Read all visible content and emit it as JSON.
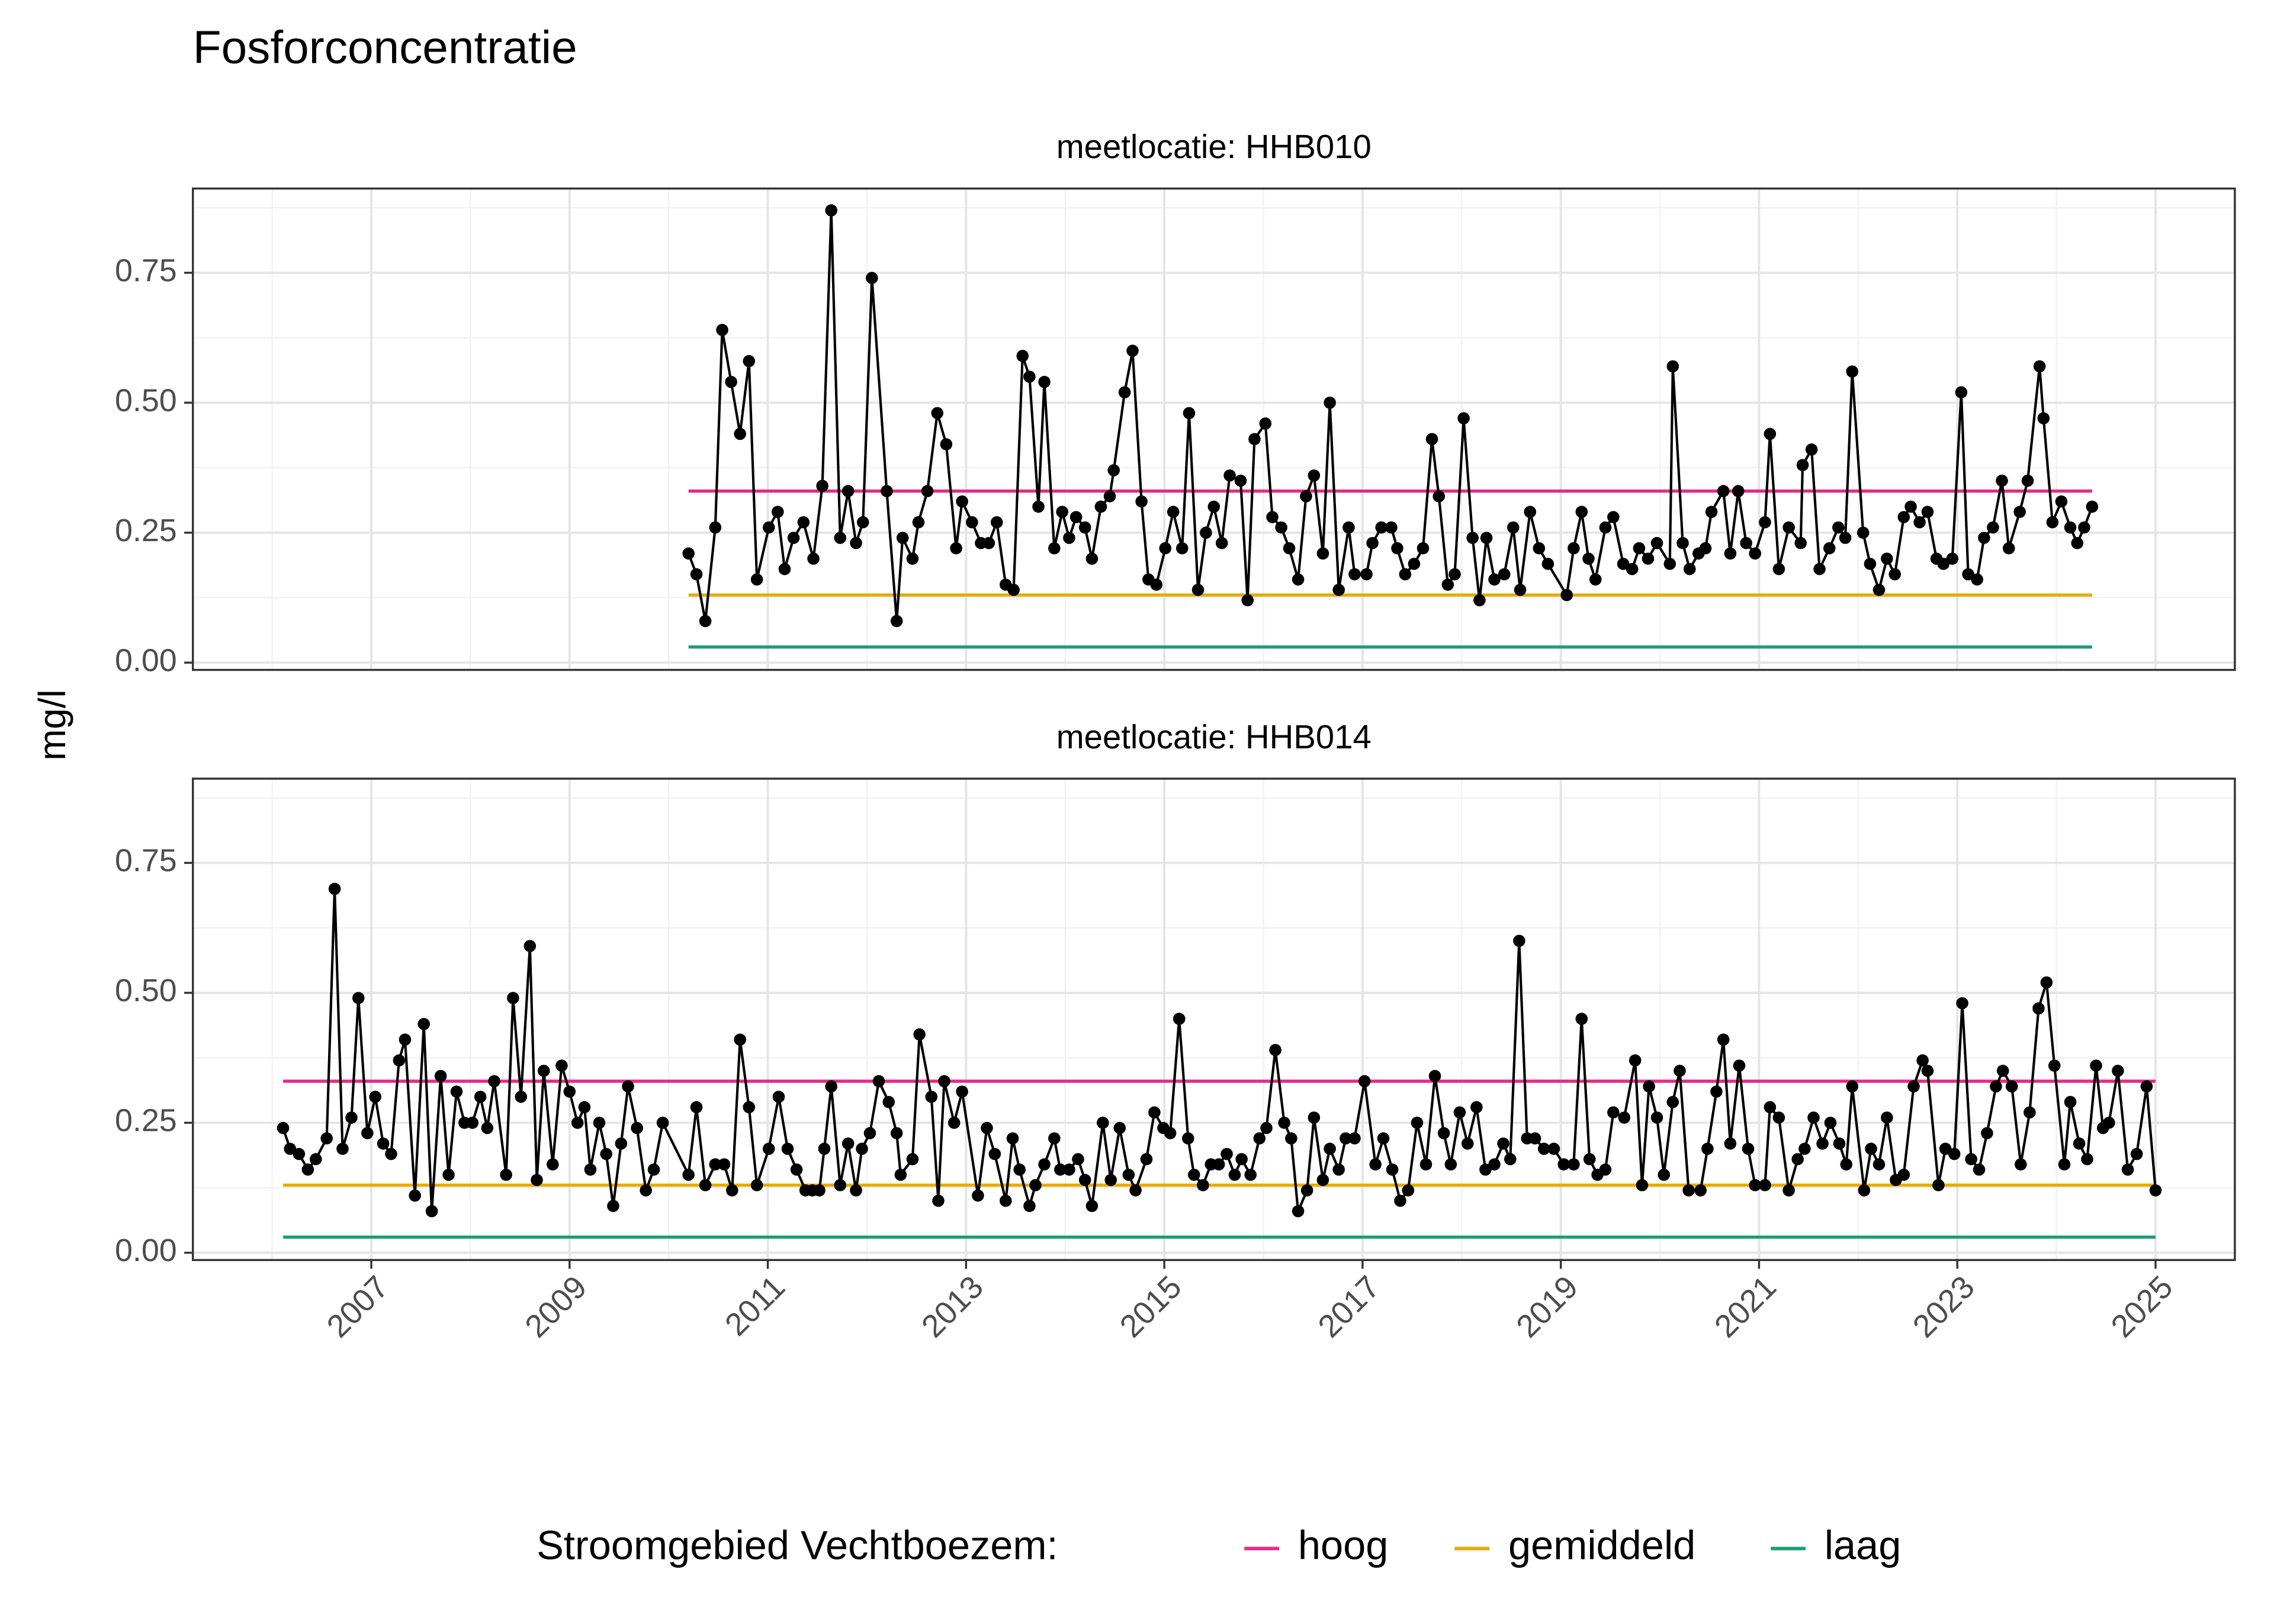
{
  "chart_data": {
    "type": "line",
    "title": "Fosforconcentratie",
    "ylabel": "mg/l",
    "legend_title": "Stroomgebied Vechtboezem:",
    "grid": true,
    "point_color": "#000000",
    "xlim": [
      2005.2,
      2025.8
    ],
    "xticks": [
      2007,
      2009,
      2011,
      2013,
      2015,
      2017,
      2019,
      2021,
      2023,
      2025
    ],
    "ylim": [
      -0.014,
      0.912
    ],
    "yticks": [
      {
        "value": 0,
        "label": "0.00"
      },
      {
        "value": 0.25,
        "label": "0.25"
      },
      {
        "value": 0.5,
        "label": "0.50"
      },
      {
        "value": 0.75,
        "label": "0.75"
      }
    ],
    "series": [
      {
        "name": "hoog",
        "color": "#e7298a"
      },
      {
        "name": "gemiddeld",
        "color": "#e6ab02"
      },
      {
        "name": "laag",
        "color": "#1b9e77"
      }
    ],
    "facets": [
      {
        "title": "meetlocatie: HHB010",
        "x": [
          2010.2,
          2010.28,
          2010.37,
          2010.47,
          2010.54,
          2010.63,
          2010.72,
          2010.81,
          2010.89,
          2011.01,
          2011.1,
          2011.17,
          2011.26,
          2011.36,
          2011.46,
          2011.55,
          2011.64,
          2011.73,
          2011.81,
          2011.89,
          2011.96,
          2012.05,
          2012.2,
          2012.3,
          2012.36,
          2012.46,
          2012.52,
          2012.61,
          2012.71,
          2012.8,
          2012.9,
          2012.96,
          2013.06,
          2013.15,
          2013.23,
          2013.31,
          2013.4,
          2013.48,
          2013.57,
          2013.64,
          2013.73,
          2013.79,
          2013.89,
          2013.97,
          2014.04,
          2014.11,
          2014.2,
          2014.27,
          2014.36,
          2014.45,
          2014.49,
          2014.6,
          2014.68,
          2014.77,
          2014.84,
          2014.92,
          2015.01,
          2015.09,
          2015.18,
          2015.25,
          2015.34,
          2015.42,
          2015.5,
          2015.58,
          2015.66,
          2015.77,
          2015.84,
          2015.91,
          2016.02,
          2016.09,
          2016.18,
          2016.26,
          2016.35,
          2016.43,
          2016.51,
          2016.6,
          2016.67,
          2016.76,
          2016.86,
          2016.92,
          2017.04,
          2017.1,
          2017.19,
          2017.29,
          2017.35,
          2017.43,
          2017.52,
          2017.61,
          2017.7,
          2017.77,
          2017.86,
          2017.93,
          2018.02,
          2018.11,
          2018.18,
          2018.25,
          2018.33,
          2018.43,
          2018.52,
          2018.59,
          2018.69,
          2018.78,
          2018.87,
          2019.06,
          2019.13,
          2019.21,
          2019.28,
          2019.35,
          2019.45,
          2019.53,
          2019.63,
          2019.72,
          2019.79,
          2019.88,
          2019.97,
          2020.1,
          2020.13,
          2020.23,
          2020.3,
          2020.39,
          2020.46,
          2020.52,
          2020.64,
          2020.71,
          2020.79,
          2020.87,
          2020.96,
          2021.06,
          2021.11,
          2021.2,
          2021.3,
          2021.42,
          2021.44,
          2021.53,
          2021.61,
          2021.71,
          2021.8,
          2021.87,
          2021.94,
          2022.05,
          2022.12,
          2022.21,
          2022.29,
          2022.37,
          2022.46,
          2022.53,
          2022.62,
          2022.7,
          2022.79,
          2022.86,
          2022.95,
          2023.04,
          2023.11,
          2023.2,
          2023.27,
          2023.36,
          2023.45,
          2023.52,
          2023.63,
          2023.71,
          2023.83,
          2023.87,
          2023.96,
          2024.05,
          2024.14,
          2024.21,
          2024.28,
          2024.36
        ],
        "values": [
          0.21,
          0.17,
          0.08,
          0.26,
          0.64,
          0.54,
          0.44,
          0.58,
          0.16,
          0.26,
          0.29,
          0.18,
          0.24,
          0.27,
          0.2,
          0.34,
          0.87,
          0.24,
          0.33,
          0.23,
          0.27,
          0.74,
          0.33,
          0.08,
          0.24,
          0.2,
          0.27,
          0.33,
          0.48,
          0.42,
          0.22,
          0.31,
          0.27,
          0.23,
          0.23,
          0.27,
          0.15,
          0.14,
          0.59,
          0.55,
          0.3,
          0.54,
          0.22,
          0.29,
          0.24,
          0.28,
          0.26,
          0.2,
          0.3,
          0.32,
          0.37,
          0.52,
          0.6,
          0.31,
          0.16,
          0.15,
          0.22,
          0.29,
          0.22,
          0.48,
          0.14,
          0.25,
          0.3,
          0.23,
          0.36,
          0.35,
          0.12,
          0.43,
          0.46,
          0.28,
          0.26,
          0.22,
          0.16,
          0.32,
          0.36,
          0.21,
          0.5,
          0.14,
          0.26,
          0.17,
          0.17,
          0.23,
          0.26,
          0.26,
          0.22,
          0.17,
          0.19,
          0.22,
          0.43,
          0.32,
          0.15,
          0.17,
          0.47,
          0.24,
          0.12,
          0.24,
          0.16,
          0.17,
          0.26,
          0.14,
          0.29,
          0.22,
          0.19,
          0.13,
          0.22,
          0.29,
          0.2,
          0.16,
          0.26,
          0.28,
          0.19,
          0.18,
          0.22,
          0.2,
          0.23,
          0.19,
          0.57,
          0.23,
          0.18,
          0.21,
          0.22,
          0.29,
          0.33,
          0.21,
          0.33,
          0.23,
          0.21,
          0.27,
          0.44,
          0.18,
          0.26,
          0.23,
          0.38,
          0.41,
          0.18,
          0.22,
          0.26,
          0.24,
          0.56,
          0.25,
          0.19,
          0.14,
          0.2,
          0.17,
          0.28,
          0.3,
          0.27,
          0.29,
          0.2,
          0.19,
          0.2,
          0.52,
          0.17,
          0.16,
          0.24,
          0.26,
          0.35,
          0.22,
          0.29,
          0.35,
          0.57,
          0.47,
          0.27,
          0.31,
          0.26,
          0.23,
          0.26,
          0.3
        ],
        "lines": [
          {
            "x": [
              2010.2,
              2024.36
            ],
            "values": [
              0.33,
              0.33
            ]
          },
          {
            "x": [
              2010.2,
              2024.36
            ],
            "values": [
              0.13,
              0.13
            ]
          },
          {
            "x": [
              2010.2,
              2024.36
            ],
            "values": [
              0.03,
              0.03
            ]
          }
        ]
      },
      {
        "title": "meetlocatie: HHB014",
        "x": [
          2006.11,
          2006.18,
          2006.27,
          2006.36,
          2006.44,
          2006.55,
          2006.63,
          2006.71,
          2006.8,
          2006.87,
          2006.96,
          2007.04,
          2007.12,
          2007.2,
          2007.28,
          2007.34,
          2007.44,
          2007.53,
          2007.61,
          2007.7,
          2007.78,
          2007.86,
          2007.94,
          2008.02,
          2008.1,
          2008.17,
          2008.24,
          2008.36,
          2008.43,
          2008.51,
          2008.6,
          2008.67,
          2008.74,
          2008.83,
          2008.92,
          2009.0,
          2009.08,
          2009.15,
          2009.21,
          2009.3,
          2009.37,
          2009.44,
          2009.52,
          2009.59,
          2009.68,
          2009.77,
          2009.85,
          2009.94,
          2010.2,
          2010.28,
          2010.37,
          2010.47,
          2010.56,
          2010.64,
          2010.72,
          2010.81,
          2010.89,
          2011.01,
          2011.11,
          2011.2,
          2011.29,
          2011.38,
          2011.45,
          2011.52,
          2011.57,
          2011.64,
          2011.73,
          2011.81,
          2011.89,
          2011.95,
          2012.03,
          2012.12,
          2012.22,
          2012.3,
          2012.34,
          2012.46,
          2012.53,
          2012.65,
          2012.72,
          2012.78,
          2012.88,
          2012.96,
          2013.12,
          2013.21,
          2013.29,
          2013.4,
          2013.47,
          2013.54,
          2013.64,
          2013.7,
          2013.79,
          2013.89,
          2013.95,
          2014.04,
          2014.13,
          2014.2,
          2014.27,
          2014.38,
          2014.46,
          2014.55,
          2014.64,
          2014.71,
          2014.82,
          2014.9,
          2014.99,
          2015.06,
          2015.15,
          2015.24,
          2015.3,
          2015.39,
          2015.47,
          2015.55,
          2015.63,
          2015.71,
          2015.78,
          2015.87,
          2015.96,
          2016.03,
          2016.12,
          2016.21,
          2016.28,
          2016.35,
          2016.44,
          2016.51,
          2016.6,
          2016.67,
          2016.76,
          2016.83,
          2016.92,
          2017.02,
          2017.13,
          2017.21,
          2017.3,
          2017.38,
          2017.46,
          2017.55,
          2017.64,
          2017.73,
          2017.82,
          2017.89,
          2017.98,
          2018.06,
          2018.15,
          2018.24,
          2018.33,
          2018.42,
          2018.49,
          2018.58,
          2018.66,
          2018.74,
          2018.83,
          2018.93,
          2019.03,
          2019.13,
          2019.21,
          2019.29,
          2019.37,
          2019.45,
          2019.53,
          2019.64,
          2019.75,
          2019.82,
          2019.89,
          2019.97,
          2020.04,
          2020.13,
          2020.2,
          2020.29,
          2020.41,
          2020.48,
          2020.57,
          2020.64,
          2020.71,
          2020.8,
          2020.89,
          2020.96,
          2021.06,
          2021.11,
          2021.2,
          2021.3,
          2021.39,
          2021.46,
          2021.55,
          2021.64,
          2021.72,
          2021.81,
          2021.88,
          2021.94,
          2022.06,
          2022.13,
          2022.21,
          2022.29,
          2022.38,
          2022.46,
          2022.56,
          2022.65,
          2022.7,
          2022.81,
          2022.88,
          2022.97,
          2023.05,
          2023.14,
          2023.22,
          2023.3,
          2023.39,
          2023.46,
          2023.55,
          2023.64,
          2023.73,
          2023.82,
          2023.9,
          2023.98,
          2024.08,
          2024.14,
          2024.23,
          2024.31,
          2024.4,
          2024.47,
          2024.53,
          2024.62,
          2024.72,
          2024.81,
          2024.91,
          2025.0
        ],
        "values": [
          0.24,
          0.2,
          0.19,
          0.16,
          0.18,
          0.22,
          0.7,
          0.2,
          0.26,
          0.49,
          0.23,
          0.3,
          0.21,
          0.19,
          0.37,
          0.41,
          0.11,
          0.44,
          0.08,
          0.34,
          0.15,
          0.31,
          0.25,
          0.25,
          0.3,
          0.24,
          0.33,
          0.15,
          0.49,
          0.3,
          0.59,
          0.14,
          0.35,
          0.17,
          0.36,
          0.31,
          0.25,
          0.28,
          0.16,
          0.25,
          0.19,
          0.09,
          0.21,
          0.32,
          0.24,
          0.12,
          0.16,
          0.25,
          0.15,
          0.28,
          0.13,
          0.17,
          0.17,
          0.12,
          0.41,
          0.28,
          0.13,
          0.2,
          0.3,
          0.2,
          0.16,
          0.12,
          0.12,
          0.12,
          0.2,
          0.32,
          0.13,
          0.21,
          0.12,
          0.2,
          0.23,
          0.33,
          0.29,
          0.23,
          0.15,
          0.18,
          0.42,
          0.3,
          0.1,
          0.33,
          0.25,
          0.31,
          0.11,
          0.24,
          0.19,
          0.1,
          0.22,
          0.16,
          0.09,
          0.13,
          0.17,
          0.22,
          0.16,
          0.16,
          0.18,
          0.14,
          0.09,
          0.25,
          0.14,
          0.24,
          0.15,
          0.12,
          0.18,
          0.27,
          0.24,
          0.23,
          0.45,
          0.22,
          0.15,
          0.13,
          0.17,
          0.17,
          0.19,
          0.15,
          0.18,
          0.15,
          0.22,
          0.24,
          0.39,
          0.25,
          0.22,
          0.08,
          0.12,
          0.26,
          0.14,
          0.2,
          0.16,
          0.22,
          0.22,
          0.33,
          0.17,
          0.22,
          0.16,
          0.1,
          0.12,
          0.25,
          0.17,
          0.34,
          0.23,
          0.17,
          0.27,
          0.21,
          0.28,
          0.16,
          0.17,
          0.21,
          0.18,
          0.6,
          0.22,
          0.22,
          0.2,
          0.2,
          0.17,
          0.17,
          0.45,
          0.18,
          0.15,
          0.16,
          0.27,
          0.26,
          0.37,
          0.13,
          0.32,
          0.26,
          0.15,
          0.29,
          0.35,
          0.12,
          0.12,
          0.2,
          0.31,
          0.41,
          0.21,
          0.36,
          0.2,
          0.13,
          0.13,
          0.28,
          0.26,
          0.12,
          0.18,
          0.2,
          0.26,
          0.21,
          0.25,
          0.21,
          0.17,
          0.32,
          0.12,
          0.2,
          0.17,
          0.26,
          0.14,
          0.15,
          0.32,
          0.37,
          0.35,
          0.13,
          0.2,
          0.19,
          0.48,
          0.18,
          0.16,
          0.23,
          0.32,
          0.35,
          0.32,
          0.17,
          0.27,
          0.47,
          0.52,
          0.36,
          0.17,
          0.29,
          0.21,
          0.18,
          0.36,
          0.24,
          0.25,
          0.35,
          0.16,
          0.19,
          0.32,
          0.12
        ],
        "lines": [
          {
            "x": [
              2006.11,
              2025.0
            ],
            "values": [
              0.33,
              0.33
            ]
          },
          {
            "x": [
              2006.11,
              2025.0
            ],
            "values": [
              0.13,
              0.13
            ]
          },
          {
            "x": [
              2006.11,
              2025.0
            ],
            "values": [
              0.03,
              0.03
            ]
          }
        ]
      }
    ]
  }
}
